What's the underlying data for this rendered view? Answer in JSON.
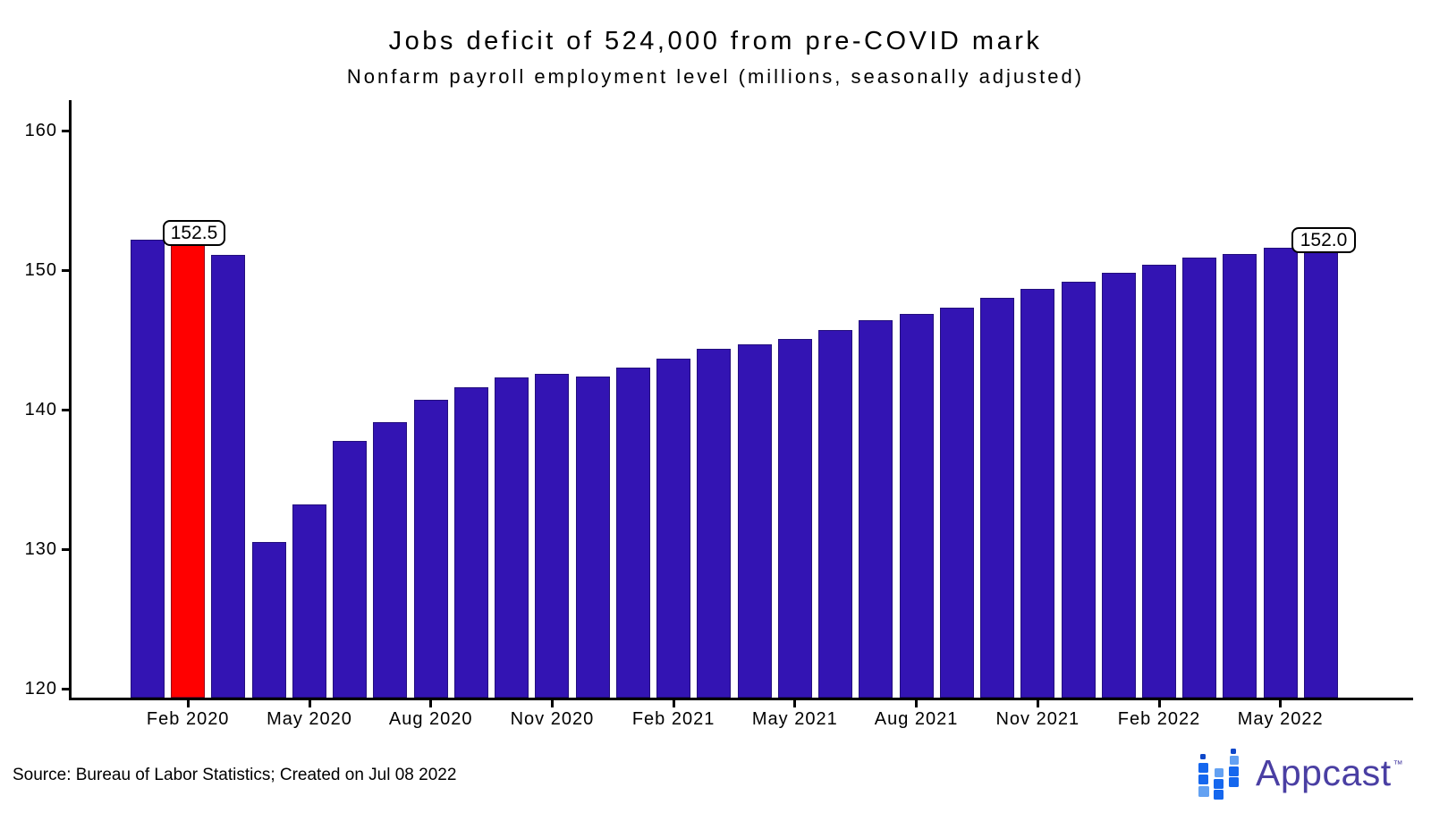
{
  "title": "Jobs deficit of 524,000 from pre-COVID mark",
  "subtitle": "Nonfarm payroll employment level (millions, seasonally adjusted)",
  "source_note": "Source: Bureau of Labor Statistics; Created on Jul 08 2022",
  "logo": {
    "text": "Appcast",
    "tm": "™"
  },
  "colors": {
    "background": "#FFFFFF",
    "bar": "#3314B3",
    "highlight": "#FF0000",
    "axis": "#000000",
    "annotation_border": "#000000",
    "logo_text": "#4A3FA3",
    "logo_blue": "#1567EE",
    "logo_light_blue": "#63A1F2",
    "logo_dark_blue": "#0E47C9"
  },
  "chart_data": {
    "type": "bar",
    "title": "Jobs deficit of 524,000 from pre-COVID mark",
    "subtitle": "Nonfarm payroll employment level (millions, seasonally adjusted)",
    "x": [
      "Jan 2020",
      "Feb 2020",
      "Mar 2020",
      "Apr 2020",
      "May 2020",
      "Jun 2020",
      "Jul 2020",
      "Aug 2020",
      "Sep 2020",
      "Oct 2020",
      "Nov 2020",
      "Dec 2020",
      "Jan 2021",
      "Feb 2021",
      "Mar 2021",
      "Apr 2021",
      "May 2021",
      "Jun 2021",
      "Jul 2021",
      "Aug 2021",
      "Sep 2021",
      "Oct 2021",
      "Nov 2021",
      "Dec 2021",
      "Jan 2022",
      "Feb 2022",
      "Mar 2022",
      "Apr 2022",
      "May 2022",
      "Jun 2022"
    ],
    "values": [
      152.2,
      152.5,
      151.1,
      130.5,
      133.2,
      137.8,
      139.1,
      140.7,
      141.6,
      142.3,
      142.6,
      142.4,
      143.0,
      143.7,
      144.4,
      144.7,
      145.1,
      145.7,
      146.4,
      146.9,
      147.3,
      148.0,
      148.7,
      149.2,
      149.8,
      150.4,
      150.9,
      151.2,
      151.6,
      152.0
    ],
    "bar_color": "#3314B3",
    "highlight_index": 1,
    "highlight_color": "#FF0000",
    "ylabel": "",
    "xlabel": "",
    "ylim": [
      119.4,
      162
    ],
    "yticks": [
      120,
      130,
      140,
      150,
      160
    ],
    "xticks": [
      {
        "index": 1,
        "label": "Feb 2020"
      },
      {
        "index": 4,
        "label": "May 2020"
      },
      {
        "index": 7,
        "label": "Aug 2020"
      },
      {
        "index": 10,
        "label": "Nov 2020"
      },
      {
        "index": 13,
        "label": "Feb 2021"
      },
      {
        "index": 16,
        "label": "May 2021"
      },
      {
        "index": 19,
        "label": "Aug 2021"
      },
      {
        "index": 22,
        "label": "Nov 2021"
      },
      {
        "index": 25,
        "label": "Feb 2022"
      },
      {
        "index": 28,
        "label": "May 2022"
      }
    ],
    "annotations": [
      {
        "month": "Feb 2020",
        "label": "152.5"
      },
      {
        "month": "Jun 2022",
        "label": "152.0"
      }
    ],
    "grid": false,
    "legend": null
  }
}
